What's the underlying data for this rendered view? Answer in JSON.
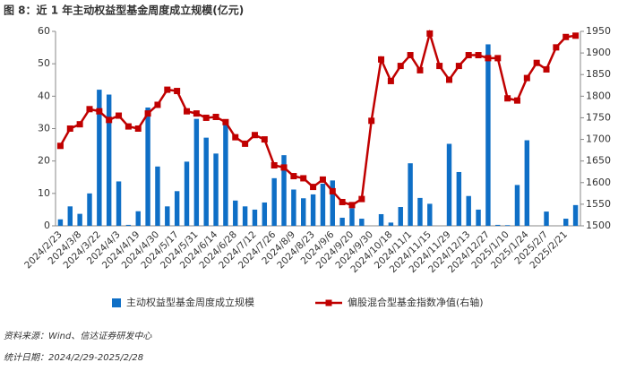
{
  "chart_data": {
    "type": "bar-line",
    "title": "图 8：近 1 年主动权益型基金周度成立规模(亿元)",
    "source": "资料来源：Wind、信达证券研发中心",
    "date_note": "统计日期：2024/2/29-2025/2/28",
    "categories": [
      "2024/2/23",
      null,
      "2024/3/8",
      null,
      "2024/3/22",
      null,
      "2024/4/3",
      null,
      "2024/4/19",
      null,
      "2024/4/30",
      null,
      "2024/5/17",
      null,
      "2024/5/31",
      null,
      "2024/6/14",
      null,
      "2024/6/28",
      null,
      "2024/7/12",
      null,
      "2024/7/26",
      null,
      "2024/8/9",
      null,
      "2024/8/23",
      null,
      "2024/9/6",
      null,
      "2024/9/20",
      null,
      "2024/9/30",
      null,
      "2024/10/18",
      null,
      "2024/11/1",
      null,
      "2024/11/15",
      null,
      "2024/11/29",
      null,
      "2024/12/13",
      null,
      "2024/12/27",
      null,
      "2025/1/10",
      null,
      "2025/1/24",
      null,
      "2025/2/7",
      null,
      "2025/2/21",
      null
    ],
    "series": [
      {
        "name": "主动权益型基金周度成立规模",
        "color": "#0f6fc6",
        "kind": "bar",
        "values": [
          2,
          6,
          3.7,
          10,
          42,
          40.5,
          13.7,
          0.3,
          4.5,
          36.5,
          18.3,
          6,
          10.7,
          19.8,
          33,
          27.2,
          22.3,
          31.5,
          7.8,
          6,
          5,
          7.2,
          14.7,
          21.8,
          11.2,
          8.5,
          9.7,
          13,
          14,
          2.5,
          5.4,
          2.2,
          0,
          3.6,
          1,
          5.8,
          19.3,
          8.6,
          6.8,
          0,
          25.3,
          16.6,
          9.2,
          5,
          56,
          0.3,
          0.2,
          12.6,
          26.4,
          0,
          4.4,
          0,
          2.2,
          6.4
        ]
      },
      {
        "name": "偏股混合型基金指数净值(右轴)",
        "color": "#c00000",
        "kind": "line",
        "axis": "y2",
        "values": [
          1685,
          1725,
          1735,
          1770,
          1765,
          1745,
          1755,
          1730,
          1725,
          1760,
          1780,
          1815,
          1812,
          1765,
          1760,
          1750,
          1752,
          1740,
          1705,
          1690,
          1710,
          1700,
          1640,
          1635,
          1615,
          1610,
          1590,
          1607,
          1580,
          1555,
          1548,
          1562,
          1743,
          1885,
          1835,
          1870,
          1895,
          1860,
          1945,
          1870,
          1838,
          1870,
          1895,
          1895,
          1888,
          1888,
          1795,
          1790,
          1842,
          1877,
          1862,
          1913,
          1937,
          1940
        ]
      }
    ],
    "ylim": [
      0,
      60
    ],
    "yticks": [
      0,
      10,
      20,
      30,
      40,
      50,
      60
    ],
    "y2lim": [
      1500,
      1950
    ],
    "y2ticks": [
      1500,
      1550,
      1600,
      1650,
      1700,
      1750,
      1800,
      1850,
      1900,
      1950
    ],
    "legend": "bottom"
  }
}
